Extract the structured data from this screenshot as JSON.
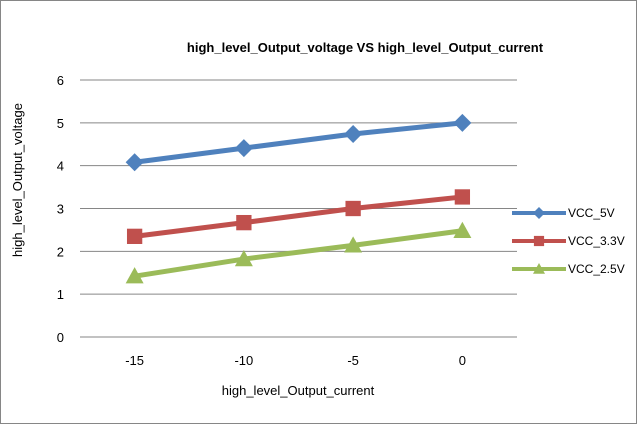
{
  "chart_data": {
    "type": "line",
    "title": "high_level_Output_voltage VS high_level_Output_current",
    "xlabel": "high_level_Output_current",
    "ylabel": "high_level_Output_voltage",
    "categories": [
      "-15",
      "-10",
      "-5",
      "0"
    ],
    "ylim": [
      0,
      6
    ],
    "yticks": [
      "0",
      "1",
      "2",
      "3",
      "4",
      "5",
      "6"
    ],
    "grid": true,
    "legend": "right",
    "series": [
      {
        "name": "VCC_5V",
        "color": "#4F81BD",
        "marker": "diamond",
        "values": [
          4.08,
          4.41,
          4.74,
          5.0
        ]
      },
      {
        "name": "VCC_3.3V",
        "color": "#C0504D",
        "marker": "square",
        "values": [
          2.35,
          2.67,
          3.0,
          3.27
        ]
      },
      {
        "name": "VCC_2.5V",
        "color": "#9BBB59",
        "marker": "triangle",
        "values": [
          1.42,
          1.82,
          2.14,
          2.48
        ]
      }
    ]
  }
}
